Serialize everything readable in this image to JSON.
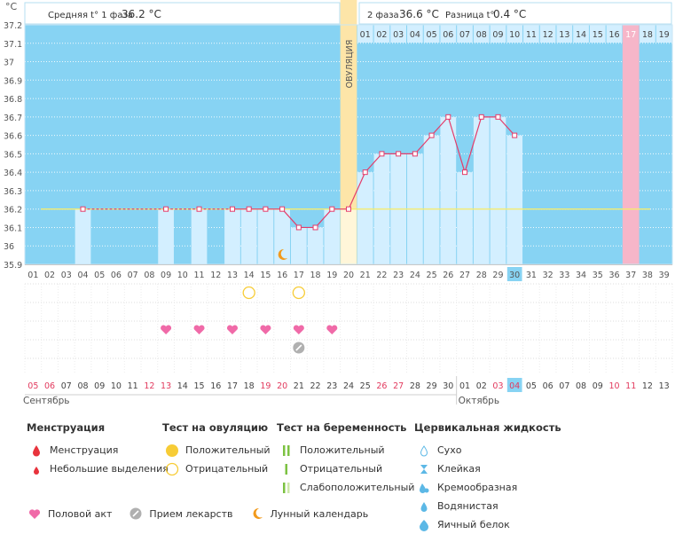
{
  "header": {
    "unit": "°C",
    "phase1_label": "Средняя t° 1 фаза",
    "phase1_value": "36.2 °C",
    "phase2_label": "2 фаза",
    "phase2_value": "36.6 °C",
    "diff_label": "Разница t°",
    "diff_value": "0.4 °C"
  },
  "colors": {
    "plot_bg": "#87d3f3",
    "bar": "#d3efff",
    "ovulation_band": "#fde5a8",
    "line": "#e43c6a",
    "cover_line": "#f4ec70",
    "accent_pink": "#f06aa8",
    "red_date": "#e23a5e"
  },
  "chart_data": {
    "type": "line",
    "y_ticks": [
      "35.9",
      "36",
      "36.1",
      "36.2",
      "36.3",
      "36.4",
      "36.5",
      "36.6",
      "36.7",
      "36.8",
      "36.9",
      "37",
      "37.1",
      "37.2"
    ],
    "ylim": [
      35.9,
      37.2
    ],
    "cycle_days": [
      "01",
      "02",
      "03",
      "04",
      "05",
      "06",
      "07",
      "08",
      "09",
      "10",
      "11",
      "12",
      "13",
      "14",
      "15",
      "16",
      "17",
      "18",
      "19",
      "20",
      "21",
      "22",
      "23",
      "24",
      "25",
      "26",
      "27",
      "28",
      "29",
      "30",
      "31",
      "32",
      "33",
      "34",
      "35",
      "36",
      "37",
      "38",
      "39"
    ],
    "phase2_days": [
      "01",
      "02",
      "03",
      "04",
      "05",
      "06",
      "07",
      "08",
      "09",
      "10",
      "11",
      "12",
      "13",
      "14",
      "15",
      "16",
      "17",
      "18",
      "19"
    ],
    "highlight_phase2_day": "17",
    "current_day": "30",
    "ovulation_label": "ОВУЛЯЦИЯ",
    "ovulation_day": 20,
    "cover_line_temp": 36.2,
    "temperatures": [
      {
        "day": 4,
        "temp": 36.2
      },
      {
        "day": 9,
        "temp": 36.2
      },
      {
        "day": 11,
        "temp": 36.2
      },
      {
        "day": 13,
        "temp": 36.2
      },
      {
        "day": 14,
        "temp": 36.2
      },
      {
        "day": 15,
        "temp": 36.2
      },
      {
        "day": 16,
        "temp": 36.2
      },
      {
        "day": 17,
        "temp": 36.1
      },
      {
        "day": 18,
        "temp": 36.1
      },
      {
        "day": 19,
        "temp": 36.2
      },
      {
        "day": 20,
        "temp": 36.2
      },
      {
        "day": 21,
        "temp": 36.4
      },
      {
        "day": 22,
        "temp": 36.5
      },
      {
        "day": 23,
        "temp": 36.5
      },
      {
        "day": 24,
        "temp": 36.5
      },
      {
        "day": 25,
        "temp": 36.6
      },
      {
        "day": 26,
        "temp": 36.7
      },
      {
        "day": 27,
        "temp": 36.4
      },
      {
        "day": 28,
        "temp": 36.7
      },
      {
        "day": 29,
        "temp": 36.7
      },
      {
        "day": 30,
        "temp": 36.6
      }
    ],
    "moon_day": 16,
    "ovulation_tests_negative": [
      14,
      17
    ],
    "intercourse_days": [
      9,
      11,
      13,
      15,
      17,
      19
    ],
    "medication_days": [
      17
    ],
    "calendar_dates": [
      "05",
      "06",
      "07",
      "08",
      "09",
      "10",
      "11",
      "12",
      "13",
      "14",
      "15",
      "16",
      "17",
      "18",
      "19",
      "20",
      "21",
      "22",
      "23",
      "24",
      "25",
      "26",
      "27",
      "28",
      "29",
      "30",
      "01",
      "02",
      "03",
      "04",
      "05",
      "06",
      "07",
      "08",
      "09",
      "10",
      "11",
      "12",
      "13"
    ],
    "calendar_red_indices": [
      0,
      1,
      7,
      8,
      14,
      15,
      21,
      22,
      28,
      29,
      35,
      36
    ],
    "calendar_today_index": 29,
    "month_start": "Сентябрь",
    "month_next": "Октябрь",
    "month_next_index": 26
  },
  "legend": {
    "menstruation": {
      "title": "Менструация",
      "items": [
        "Менструация",
        "Небольшие выделения"
      ]
    },
    "ovulation_test": {
      "title": "Тест на овуляцию",
      "items": [
        "Положительный",
        "Отрицательный"
      ]
    },
    "pregnancy_test": {
      "title": "Тест на беременность",
      "items": [
        "Положительный",
        "Отрицательный",
        "Слабоположительный"
      ]
    },
    "cervical_fluid": {
      "title": "Цервикальная жидкость",
      "items": [
        "Сухо",
        "Клейкая",
        "Кремообразная",
        "Водянистая",
        "Яичный белок"
      ]
    }
  },
  "bottom_legend": [
    "Половой акт",
    "Прием лекарств",
    "Лунный календарь"
  ]
}
